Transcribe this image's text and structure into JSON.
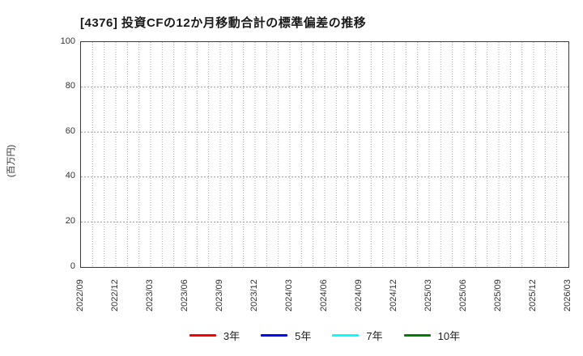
{
  "chart": {
    "title": "[4376]  投資CFの12か月移動合計の標準偏差の推移",
    "y_axis": {
      "unit_label": "(百万円)",
      "ticks": [
        "0",
        "20",
        "40",
        "60",
        "80",
        "100"
      ]
    },
    "x_axis": {
      "ticks": [
        "2022/09",
        "2022/12",
        "2023/03",
        "2023/06",
        "2023/09",
        "2023/12",
        "2024/03",
        "2024/06",
        "2024/09",
        "2024/12",
        "2025/03",
        "2025/06",
        "2025/09",
        "2025/12",
        "2026/03"
      ]
    },
    "legend": {
      "items": [
        {
          "label": "3年",
          "color": "#ff0000"
        },
        {
          "label": "5年",
          "color": "#0000ff"
        },
        {
          "label": "7年",
          "color": "#00ffff"
        },
        {
          "label": "10年",
          "color": "#008000"
        }
      ]
    }
  },
  "chart_data": {
    "type": "line",
    "title": "[4376] 投資CFの12か月移動合計の標準偏差の推移",
    "ylabel": "(百万円)",
    "ylim": [
      0,
      100
    ],
    "yticks": [
      0,
      20,
      40,
      60,
      80,
      100
    ],
    "x_tick_labels": [
      "2022/09",
      "2022/12",
      "2023/03",
      "2023/06",
      "2023/09",
      "2023/12",
      "2024/03",
      "2024/06",
      "2024/09",
      "2024/12",
      "2025/03",
      "2025/06",
      "2025/09",
      "2025/12",
      "2026/03"
    ],
    "x_range_months": 43,
    "x_minor_gridlines": "monthly",
    "grid": true,
    "grid_style": "dotted",
    "legend_position": "bottom-center",
    "series": [
      {
        "name": "3年",
        "color": "#ff0000",
        "values": []
      },
      {
        "name": "5年",
        "color": "#0000ff",
        "values": []
      },
      {
        "name": "7年",
        "color": "#00ffff",
        "values": []
      },
      {
        "name": "10年",
        "color": "#008000",
        "values": []
      }
    ],
    "note": "plot area is empty - no data lines are drawn for any series"
  }
}
